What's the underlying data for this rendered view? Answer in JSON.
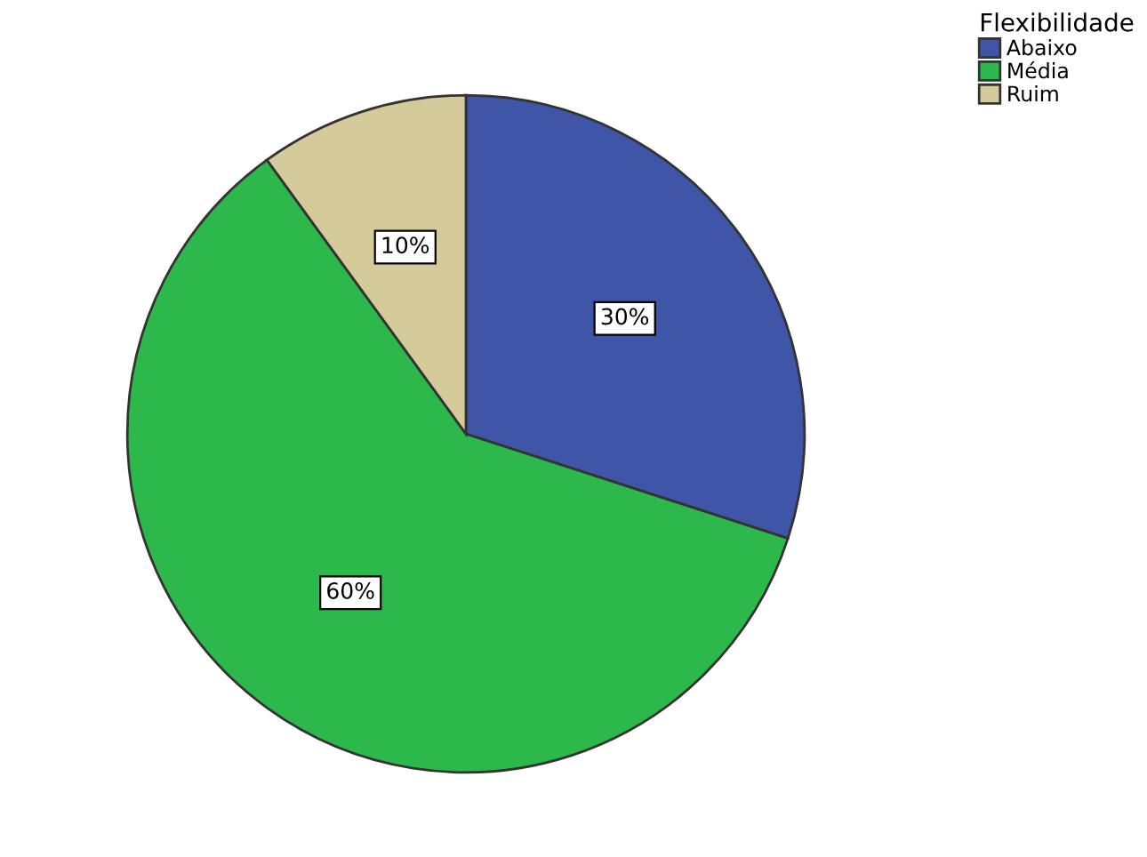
{
  "chart_data": {
    "type": "pie",
    "legend_title": "Flexibilidade",
    "legend": "top right",
    "categories": [
      "Abaixo",
      "Média",
      "Ruim"
    ],
    "values": [
      30,
      60,
      10
    ],
    "value_labels": [
      "30%",
      "60%",
      "10%"
    ],
    "colors": [
      "#3e55a8",
      "#2db84b",
      "#d5cb9a"
    ]
  }
}
